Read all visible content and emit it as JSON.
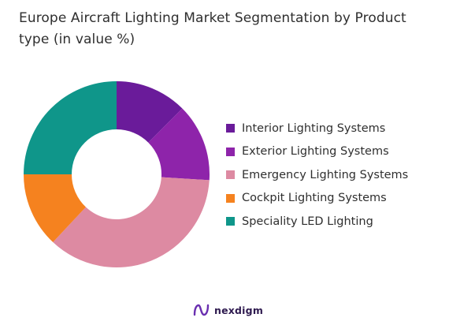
{
  "title": "Europe Aircraft Lighting Market Segmentation by Product type (in value %)",
  "brand": {
    "name": "nexdigm",
    "icon": "nexdigm-logo-icon",
    "color": "#6a2fb0"
  },
  "chart_data": {
    "type": "pie",
    "subtype": "donut",
    "title": "Europe Aircraft Lighting Market Segmentation by Product type (in value %)",
    "legend_position": "right",
    "series": [
      {
        "name": "Interior Lighting Systems",
        "value": 12.5,
        "color": "#6a1b9a"
      },
      {
        "name": "Exterior Lighting Systems",
        "value": 13.5,
        "color": "#8e24aa"
      },
      {
        "name": "Emergency Lighting Systems",
        "value": 36.0,
        "color": "#dd8aa2"
      },
      {
        "name": "Cockpit Lighting Systems",
        "value": 13.0,
        "color": "#f5821f"
      },
      {
        "name": "Speciality LED Lighting",
        "value": 25.0,
        "color": "#0f968a"
      }
    ]
  }
}
